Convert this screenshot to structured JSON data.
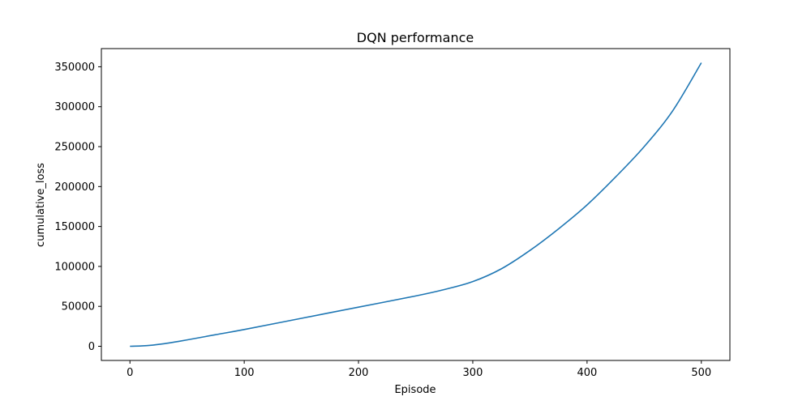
{
  "chart_data": {
    "type": "line",
    "title": "DQN performance",
    "xlabel": "Episode",
    "ylabel": "cumulative_loss",
    "xlim": [
      -25,
      525
    ],
    "ylim": [
      -17750,
      372750
    ],
    "xticks": [
      0,
      100,
      200,
      300,
      400,
      500
    ],
    "xtick_labels": [
      "0",
      "100",
      "200",
      "300",
      "400",
      "500"
    ],
    "yticks": [
      0,
      50000,
      100000,
      150000,
      200000,
      250000,
      300000,
      350000
    ],
    "ytick_labels": [
      "0",
      "50000",
      "100000",
      "150000",
      "200000",
      "250000",
      "300000",
      "350000"
    ],
    "grid": false,
    "series": [
      {
        "color": "#1f77b4",
        "x": [
          0,
          10,
          20,
          30,
          40,
          50,
          75,
          100,
          150,
          200,
          250,
          275,
          300,
          325,
          350,
          375,
          400,
          425,
          450,
          475,
          500
        ],
        "y": [
          0,
          400,
          1500,
          3200,
          5500,
          8000,
          14500,
          21000,
          35000,
          49000,
          63000,
          71000,
          81000,
          97000,
          120000,
          147000,
          177000,
          212000,
          250000,
          295000,
          355000
        ]
      }
    ]
  }
}
